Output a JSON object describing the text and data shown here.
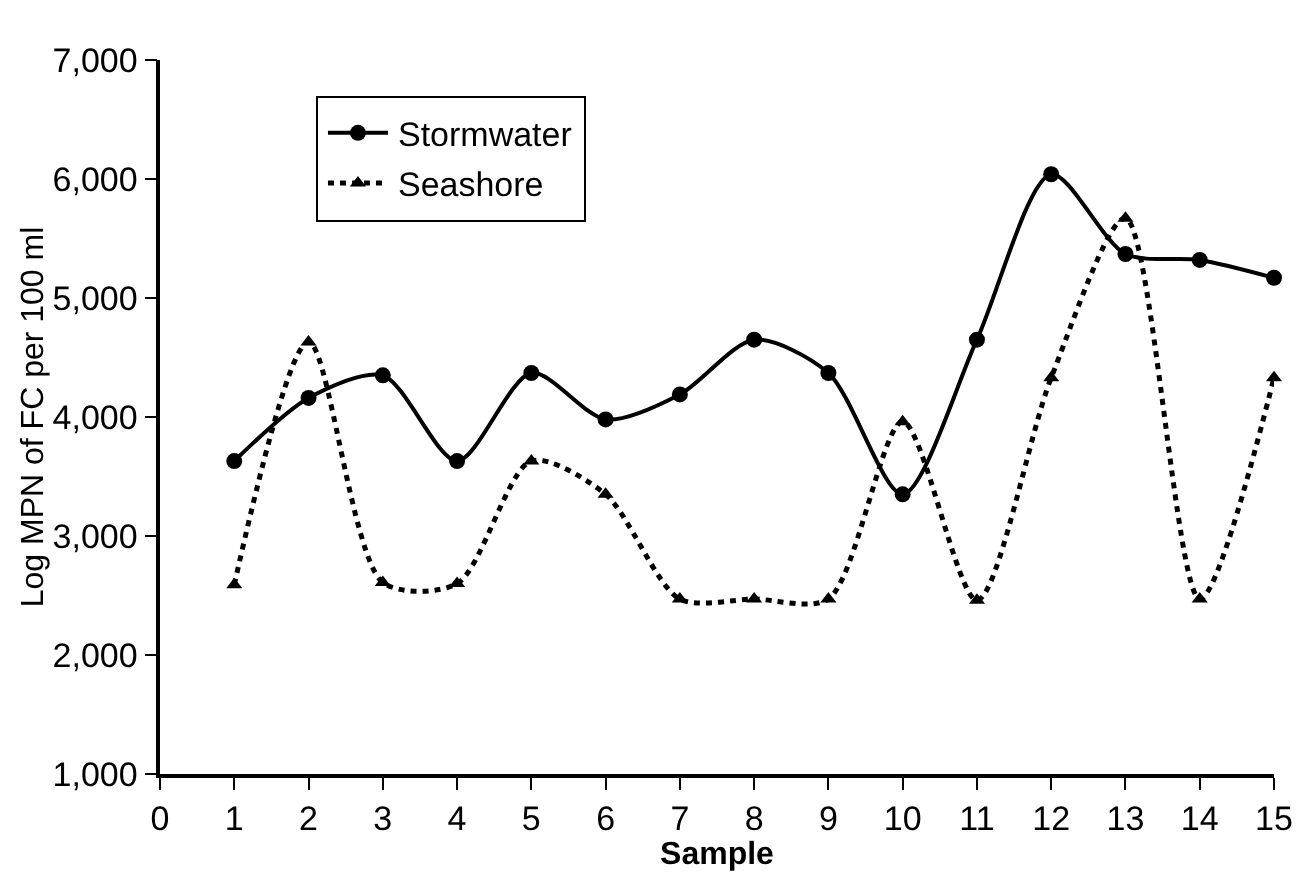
{
  "chart_data": {
    "type": "line",
    "xlabel": "Sample",
    "ylabel": "Log MPN of FC per 100 ml",
    "x": [
      1,
      2,
      3,
      4,
      5,
      6,
      7,
      8,
      9,
      10,
      11,
      12,
      13,
      14,
      15
    ],
    "series": [
      {
        "name": "Stormwater",
        "color": "#000000",
        "marker": "circle",
        "line_style": "solid",
        "values": [
          3630,
          4160,
          4350,
          3630,
          4370,
          3980,
          4190,
          4650,
          4370,
          3350,
          4650,
          6040,
          5370,
          5320,
          5170
        ]
      },
      {
        "name": "Seashore",
        "color": "#000000",
        "marker": "triangle",
        "line_style": "dotted",
        "values": [
          2590,
          4630,
          2610,
          2600,
          3630,
          3350,
          2470,
          2470,
          2470,
          3960,
          2460,
          4330,
          5670,
          2470,
          4330
        ]
      }
    ],
    "xlim": [
      0,
      15
    ],
    "xticks": [
      0,
      1,
      2,
      3,
      4,
      5,
      6,
      7,
      8,
      9,
      10,
      11,
      12,
      13,
      14,
      15
    ],
    "ylim": [
      1000,
      7000
    ],
    "yticks": [
      {
        "value": 1000,
        "label": "1,000"
      },
      {
        "value": 2000,
        "label": "2,000"
      },
      {
        "value": 3000,
        "label": "3,000"
      },
      {
        "value": 4000,
        "label": "4,000"
      },
      {
        "value": 5000,
        "label": "5,000"
      },
      {
        "value": 6000,
        "label": "6,000"
      },
      {
        "value": 7000,
        "label": "7,000"
      }
    ],
    "legend": "top left"
  }
}
